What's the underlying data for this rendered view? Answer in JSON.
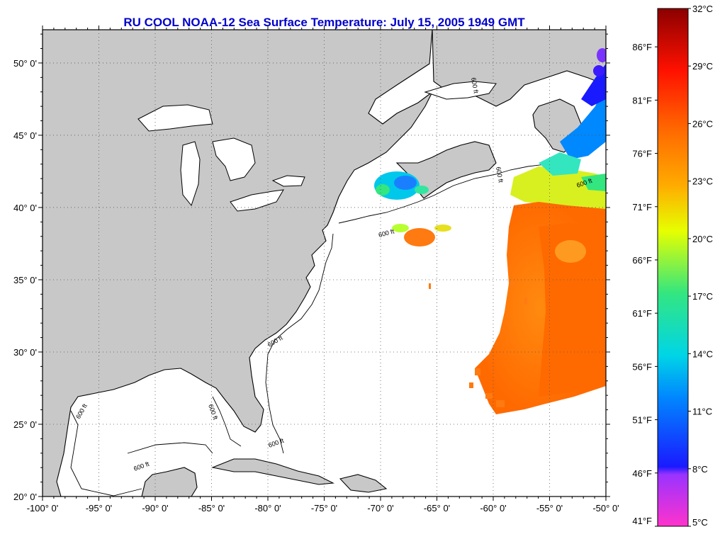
{
  "title": "RU COOL  NOAA-12  Sea Surface Temperature:  July 15, 2005 1949 GMT",
  "map": {
    "lon_ticks": [
      {
        "value": -100,
        "label": "-100° 0'"
      },
      {
        "value": -95,
        "label": "-95° 0'"
      },
      {
        "value": -90,
        "label": "-90° 0'"
      },
      {
        "value": -85,
        "label": "-85° 0'"
      },
      {
        "value": -80,
        "label": "-80° 0'"
      },
      {
        "value": -75,
        "label": "-75° 0'"
      },
      {
        "value": -70,
        "label": "-70° 0'"
      },
      {
        "value": -65,
        "label": "-65° 0'"
      },
      {
        "value": -60,
        "label": "-60° 0'"
      },
      {
        "value": -55,
        "label": "-55° 0'"
      },
      {
        "value": -50,
        "label": "-50° 0'"
      }
    ],
    "lat_ticks": [
      {
        "value": 20,
        "label": "20° 0'"
      },
      {
        "value": 25,
        "label": "25° 0'"
      },
      {
        "value": 30,
        "label": "30° 0'"
      },
      {
        "value": 35,
        "label": "35° 0'"
      },
      {
        "value": 40,
        "label": "40° 0'"
      },
      {
        "value": 45,
        "label": "45° 0'"
      },
      {
        "value": 50,
        "label": "50° 0'"
      }
    ],
    "isobath_label": "600 ft",
    "land_color": "#c8c8c8",
    "water_color": "#ffffff"
  },
  "colorbar": {
    "colors": [
      "#ff33cc",
      "#9933ff",
      "#1a1aff",
      "#0088ff",
      "#00d5e6",
      "#33e680",
      "#e6ff00",
      "#ffaa00",
      "#ff6600",
      "#ff1100",
      "#d10000",
      "#8b0000"
    ],
    "celsius_labels": [
      "32°C",
      "29°C",
      "26°C",
      "23°C",
      "20°C",
      "17°C",
      "14°C",
      "11°C",
      "8°C",
      "5°C"
    ],
    "fahrenheit_labels": [
      "86°F",
      "81°F",
      "76°F",
      "71°F",
      "66°F",
      "61°F",
      "56°F",
      "51°F",
      "46°F",
      "41°F"
    ]
  }
}
